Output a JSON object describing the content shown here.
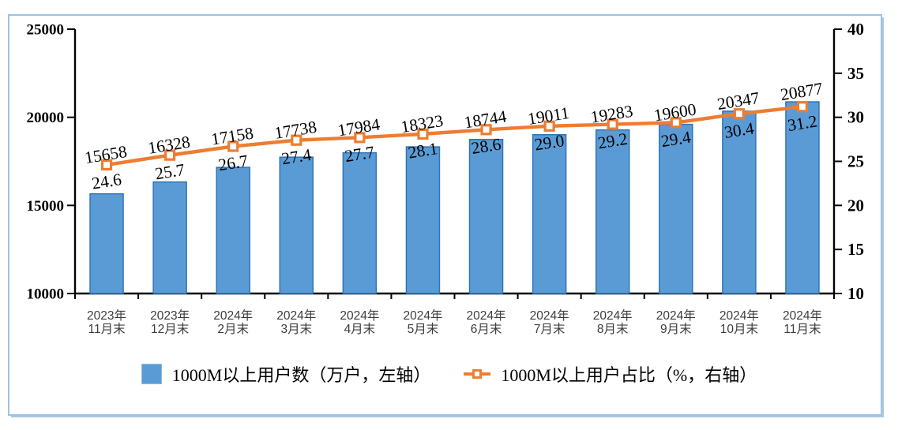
{
  "chart_data": {
    "type": "bar",
    "title": "",
    "categories": [
      "2023年\n11月末",
      "2023年\n12月末",
      "2024年\n2月末",
      "2024年\n3月末",
      "2024年\n4月末",
      "2024年\n5月末",
      "2024年\n6月末",
      "2024年\n7月末",
      "2024年\n8月末",
      "2024年\n9月末",
      "2024年\n10月末",
      "2024年\n11月末"
    ],
    "series": [
      {
        "name": "1000M以上用户数（万户，左轴）",
        "type": "bar",
        "axis": "left",
        "values": [
          15658,
          16328,
          17158,
          17738,
          17984,
          18323,
          18744,
          19011,
          19283,
          19600,
          20347,
          20877
        ],
        "labels": [
          "15658",
          "16328",
          "17158",
          "17738",
          "17984",
          "18323",
          "18744",
          "19011",
          "19283",
          "19600",
          "20347",
          "20877"
        ],
        "color": "#5B9BD5",
        "border_color": "#2E75B6"
      },
      {
        "name": "1000M以上用户占比（%，右轴）",
        "type": "line",
        "axis": "right",
        "values": [
          24.6,
          25.7,
          26.7,
          27.4,
          27.7,
          28.1,
          28.6,
          29.0,
          29.2,
          29.4,
          30.4,
          31.2
        ],
        "labels": [
          "24.6",
          "25.7",
          "26.7",
          "27.4",
          "27.7",
          "28.1",
          "28.6",
          "29.0",
          "29.2",
          "29.4",
          "30.4",
          "31.2"
        ],
        "color": "#ED7D31",
        "marker": "square-open"
      }
    ],
    "left_axis": {
      "min": 10000,
      "max": 25000,
      "ticks": [
        10000,
        15000,
        20000,
        25000
      ]
    },
    "right_axis": {
      "min": 10,
      "max": 40,
      "ticks": [
        10,
        15,
        20,
        25,
        30,
        35,
        40
      ]
    },
    "grid": false,
    "legend_position": "bottom",
    "colors": {
      "frame_border": "#9DC3E6",
      "axis": "#000000",
      "xlabel_text": "#3d3d3d",
      "data_label_text": "#000000"
    }
  }
}
